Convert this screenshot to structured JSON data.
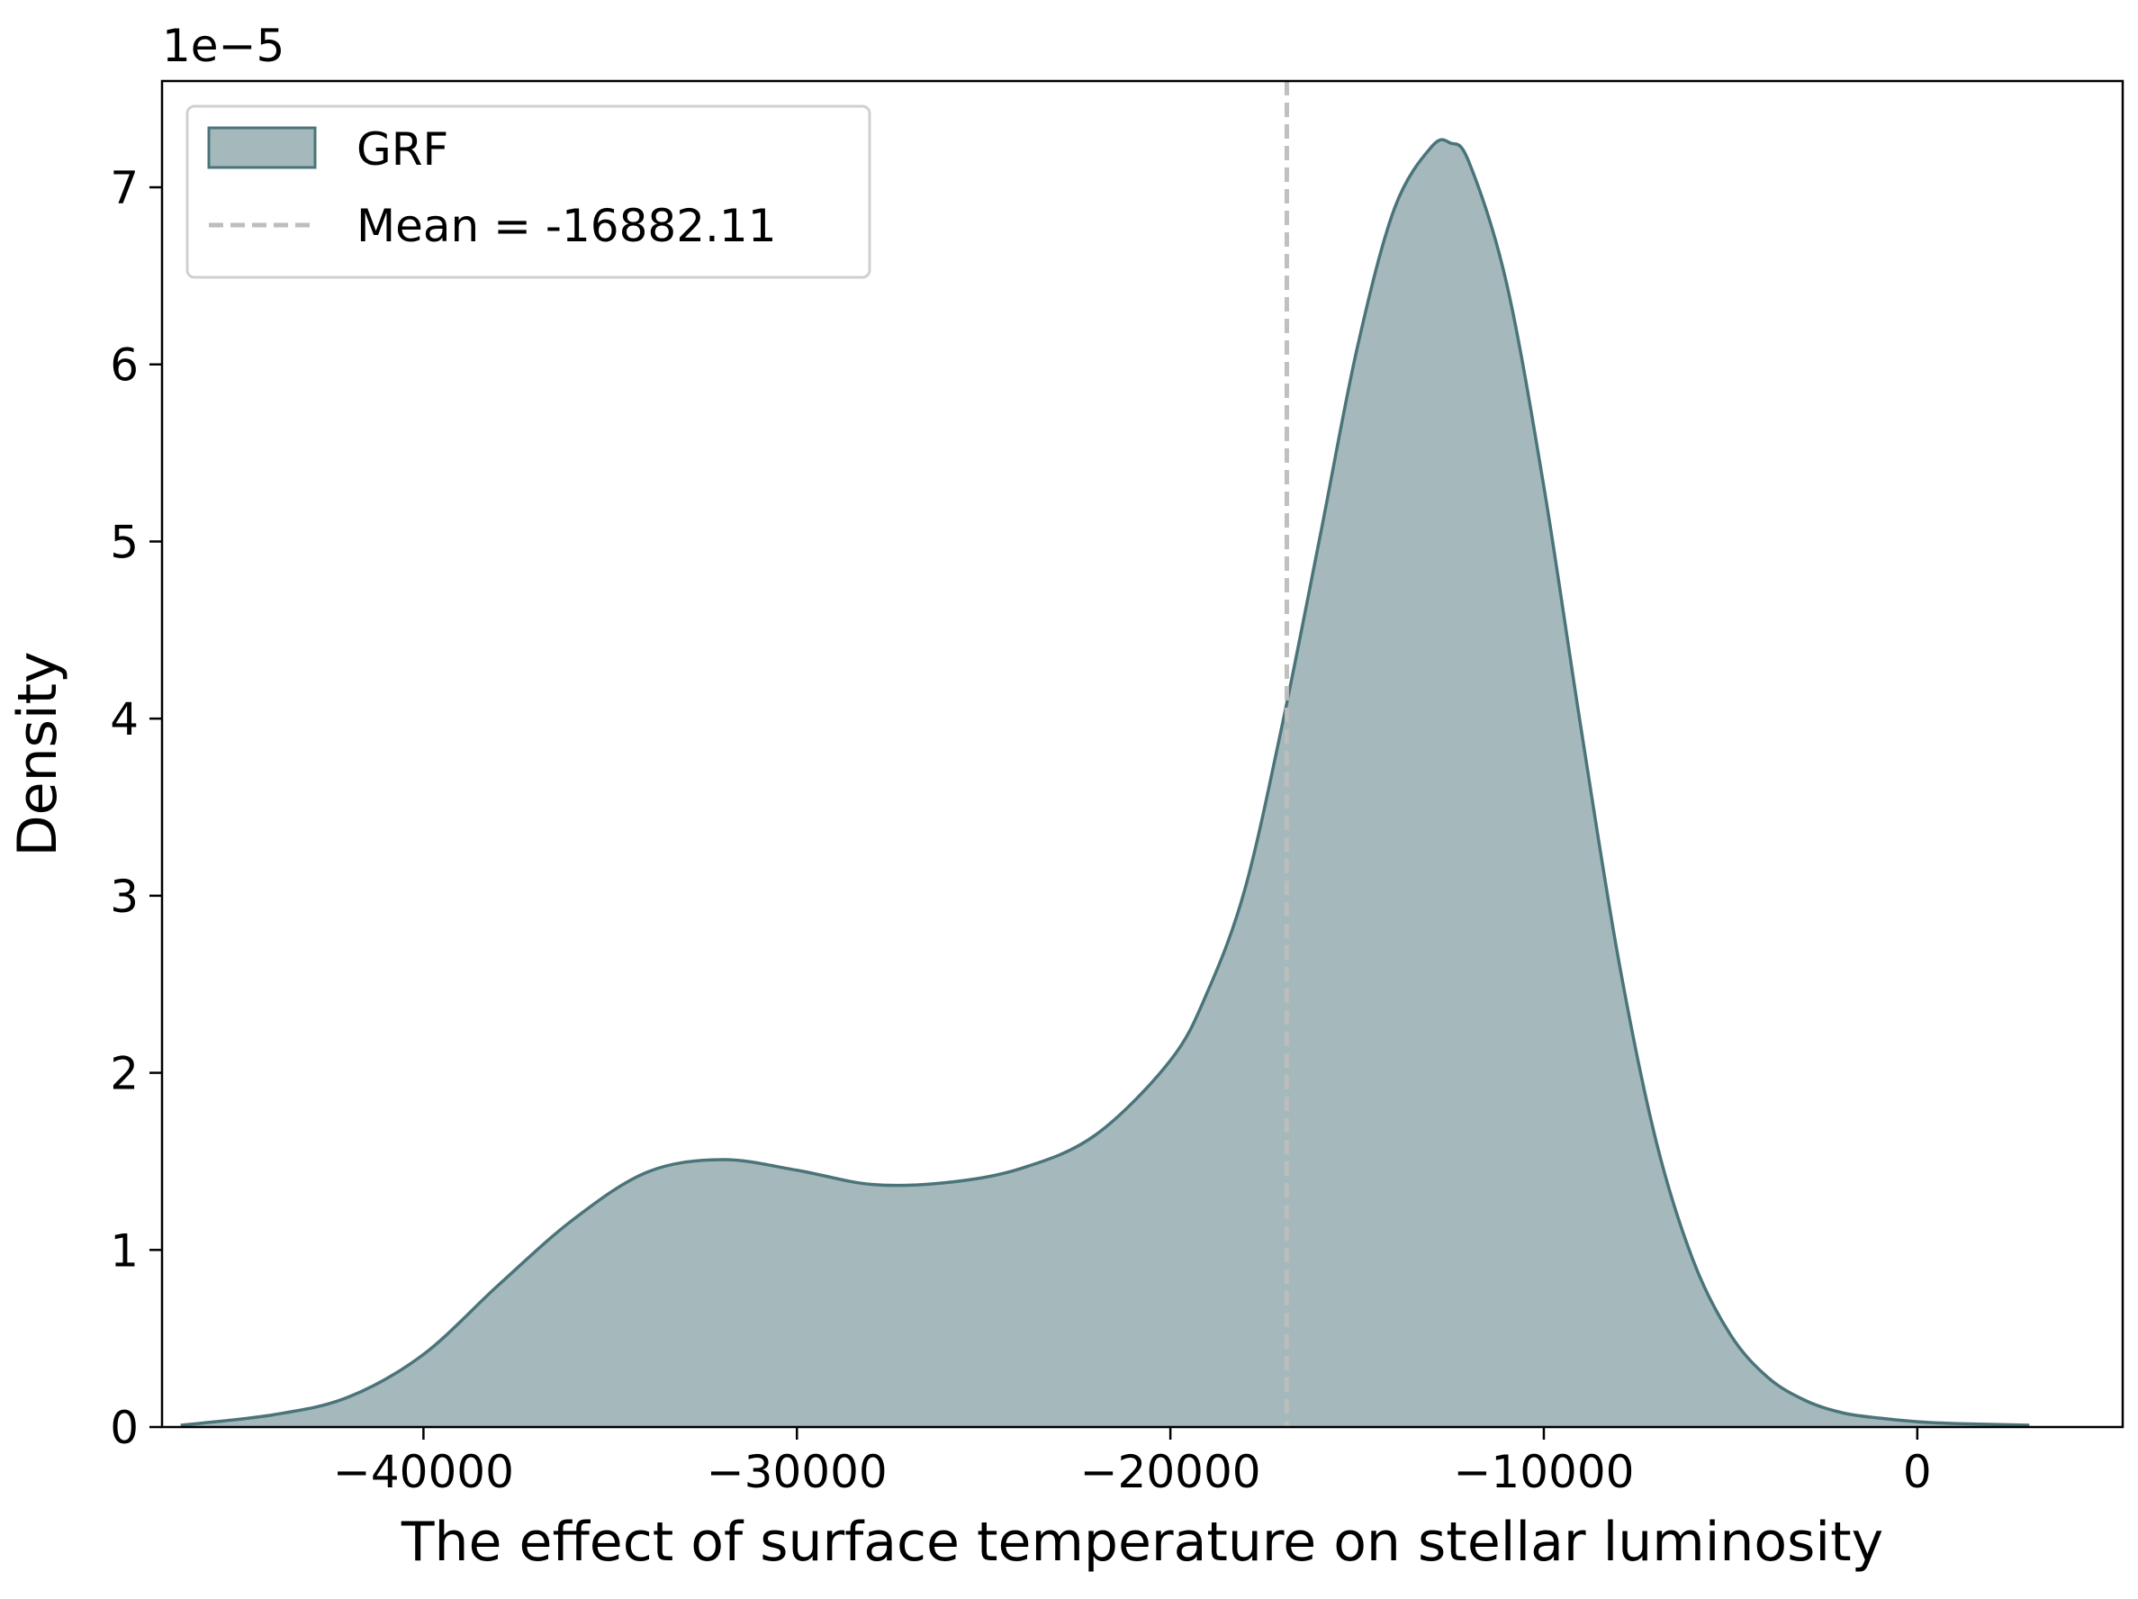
{
  "chart_data": {
    "type": "area",
    "title": "",
    "xlabel": "The effect of surface temperature on stellar luminosity",
    "ylabel": "Density",
    "y_offset_label": "1e−5",
    "xlim": [
      -47000,
      5500
    ],
    "ylim": [
      0,
      7.6
    ],
    "y_scale_exponent": -5,
    "grid": false,
    "legend_position": "upper-left",
    "x_ticks": [
      -40000,
      -30000,
      -20000,
      -10000,
      0
    ],
    "x_tick_labels": [
      "−40000",
      "−30000",
      "−20000",
      "−10000",
      "0"
    ],
    "y_ticks": [
      0,
      1,
      2,
      3,
      4,
      5,
      6,
      7
    ],
    "y_tick_labels": [
      "0",
      "1",
      "2",
      "3",
      "4",
      "5",
      "6",
      "7"
    ],
    "series": [
      {
        "name": "GRF",
        "kind": "kde-filled",
        "fill_color": "#A5B9BC",
        "line_color": "#4A7479",
        "x": [
          -46500,
          -44000,
          -42000,
          -40000,
          -38000,
          -36000,
          -34000,
          -32000,
          -30000,
          -28000,
          -26000,
          -24000,
          -22000,
          -20000,
          -19000,
          -18000,
          -17000,
          -16000,
          -15000,
          -14000,
          -13000,
          -12500,
          -12000,
          -11000,
          -10000,
          -9000,
          -8000,
          -7000,
          -6000,
          -5000,
          -4000,
          -3000,
          -2000,
          -1000,
          0,
          1000,
          3000
        ],
        "y": [
          0.01,
          0.07,
          0.17,
          0.41,
          0.8,
          1.17,
          1.44,
          1.51,
          1.45,
          1.37,
          1.38,
          1.46,
          1.65,
          2.07,
          2.46,
          3.04,
          3.97,
          5.02,
          6.09,
          6.88,
          7.23,
          7.25,
          7.14,
          6.46,
          5.31,
          3.94,
          2.64,
          1.62,
          0.94,
          0.52,
          0.28,
          0.15,
          0.08,
          0.05,
          0.03,
          0.02,
          0.01
        ]
      }
    ],
    "mean_line": {
      "label": "Mean = -16882.11",
      "x": -16882.11,
      "color": "#BDBDBD",
      "style": "dashed"
    }
  }
}
